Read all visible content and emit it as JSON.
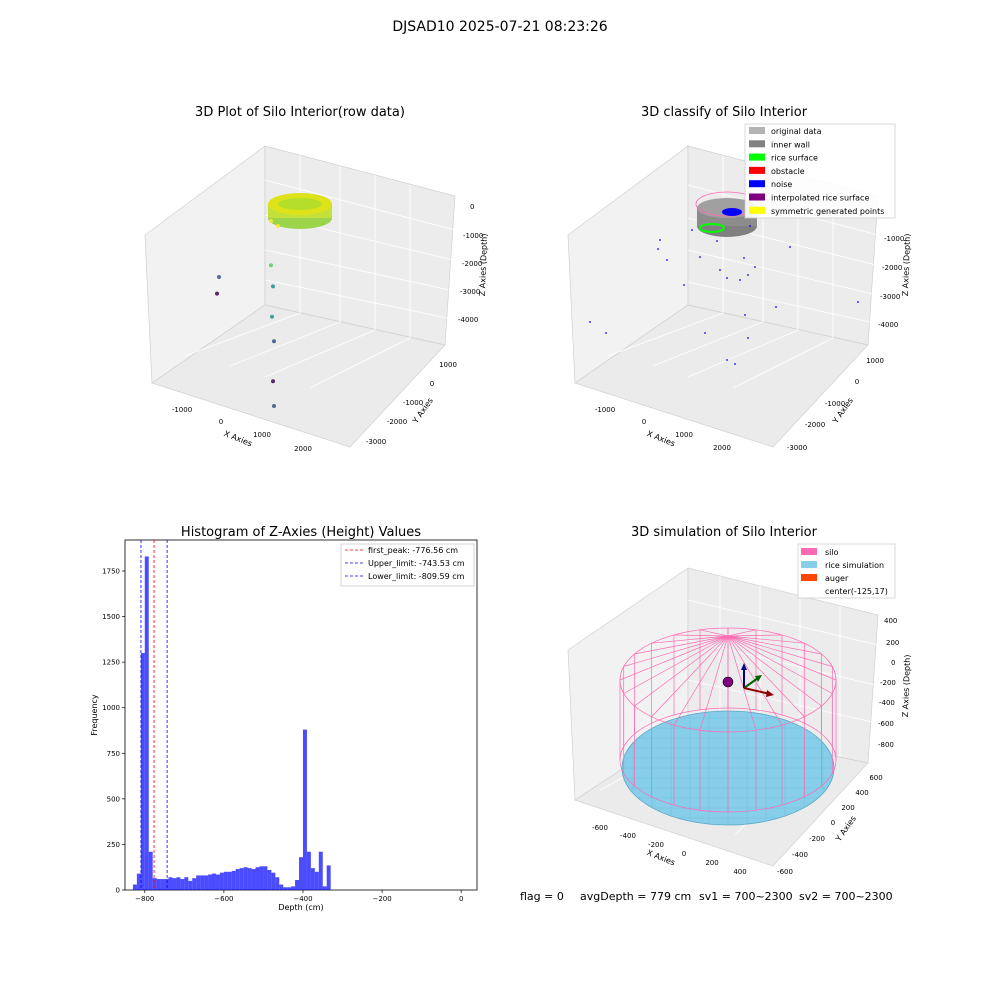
{
  "suptitle": "DJSAD10 2025-07-21 08:23:26",
  "footer": {
    "flag": "flag = 0",
    "avgDepth": "avgDepth = 779 cm",
    "sv1": "sv1 = 700~2300",
    "sv2": "sv2 = 700~2300"
  },
  "chart_data": [
    {
      "type": "scatter",
      "subtype": "3d",
      "title": "3D Plot of Silo Interior(row data)",
      "xlabel": "X Axies",
      "ylabel": "Y Axies",
      "zlabel": "Z Axies (Depth)",
      "x_ticks": [
        "-1000",
        "0",
        "1000",
        "2000"
      ],
      "y_ticks": [
        "-3000",
        "-2000",
        "-1000",
        "0",
        "1000"
      ],
      "z_ticks": [
        "-4000",
        "-3000",
        "-2000",
        "-1000",
        "0"
      ],
      "colormap": "viridis",
      "points": [
        {
          "x": -1400,
          "y": 600,
          "z": -3700
        },
        {
          "x": -1300,
          "y": 400,
          "z": -4000
        },
        {
          "x": 200,
          "y": 200,
          "z": -900
        },
        {
          "x": 300,
          "y": 300,
          "z": -1100
        },
        {
          "x": 500,
          "y": -200,
          "z": -1800
        },
        {
          "x": 700,
          "y": -400,
          "z": -2200
        },
        {
          "x": 900,
          "y": -700,
          "z": -2800
        },
        {
          "x": 1100,
          "y": -900,
          "z": -3300
        },
        {
          "x": 1300,
          "y": -1200,
          "z": -4200
        },
        {
          "x": 2300,
          "y": -2500,
          "z": -3400
        }
      ]
    },
    {
      "type": "scatter",
      "subtype": "3d",
      "title": "3D classify of Silo Interior",
      "xlabel": "X Axies",
      "ylabel": "Y Axies",
      "zlabel": "Z Axies (Depth)",
      "x_ticks": [
        "-1000",
        "0",
        "1000",
        "2000"
      ],
      "y_ticks": [
        "-3000",
        "-2000",
        "-1000",
        "0",
        "1000"
      ],
      "z_ticks": [
        "-4000",
        "-3000",
        "-2000",
        "-1000"
      ],
      "legend": [
        {
          "label": "original data",
          "color": "#b3b3b3"
        },
        {
          "label": "inner wall",
          "color": "#808080"
        },
        {
          "label": "rice surface",
          "color": "#00ff00"
        },
        {
          "label": "obstacle",
          "color": "#ff0000"
        },
        {
          "label": "noise",
          "color": "#0000ff"
        },
        {
          "label": "interpolated rice surface",
          "color": "#800080"
        },
        {
          "label": "symmetric generated points",
          "color": "#ffff00"
        }
      ],
      "legend_loc": "upper right"
    },
    {
      "type": "histogram",
      "title": "Histogram of Z-Axies (Height) Values",
      "xlabel": "Depth (cm)",
      "ylabel": "Frequency",
      "xlim": [
        -850,
        40
      ],
      "ylim": [
        0,
        1920
      ],
      "x_ticks": [
        -800,
        -600,
        -400,
        -200,
        0
      ],
      "y_ticks": [
        0,
        250,
        500,
        750,
        1000,
        1250,
        1500,
        1750
      ],
      "bin_start": -830,
      "bin_width": 10,
      "bar_color": "#0000ff",
      "values": [
        30,
        90,
        1300,
        1830,
        210,
        65,
        60,
        60,
        60,
        70,
        65,
        70,
        60,
        70,
        50,
        65,
        80,
        80,
        80,
        85,
        90,
        85,
        95,
        100,
        100,
        105,
        115,
        120,
        125,
        120,
        115,
        125,
        130,
        130,
        110,
        95,
        70,
        30,
        15,
        15,
        20,
        55,
        180,
        880,
        210,
        120,
        100,
        210,
        20,
        135
      ],
      "lines": [
        {
          "label": "first_peak: -776.56 cm",
          "x": -776.56,
          "color": "#ff0000"
        },
        {
          "label": "Upper_limit: -743.53 cm",
          "x": -743.53,
          "color": "#0000ff"
        },
        {
          "label": "Lower_limit: -809.59 cm",
          "x": -809.59,
          "color": "#0000ff"
        }
      ],
      "legend_loc": "upper right"
    },
    {
      "type": "surface",
      "subtype": "3d",
      "title": "3D simulation of Silo Interior",
      "xlabel": "X Axies",
      "ylabel": "Y Axies",
      "zlabel": "Z Axies (Depth)",
      "x_ticks": [
        "-600",
        "-400",
        "-200",
        "0",
        "200",
        "400"
      ],
      "y_ticks": [
        "-600",
        "-400",
        "-200",
        "0",
        "200",
        "400",
        "600"
      ],
      "z_ticks": [
        "-800",
        "-600",
        "-400",
        "-200",
        "0",
        "200",
        "400"
      ],
      "legend": [
        {
          "label": "silo",
          "color": "#ff69b4"
        },
        {
          "label": "rice simulation",
          "color": "#87ceeb"
        },
        {
          "label": "auger",
          "color": "#ff4500"
        },
        {
          "label": "center(-125,17)",
          "color": ""
        }
      ],
      "legend_loc": "upper right"
    }
  ]
}
